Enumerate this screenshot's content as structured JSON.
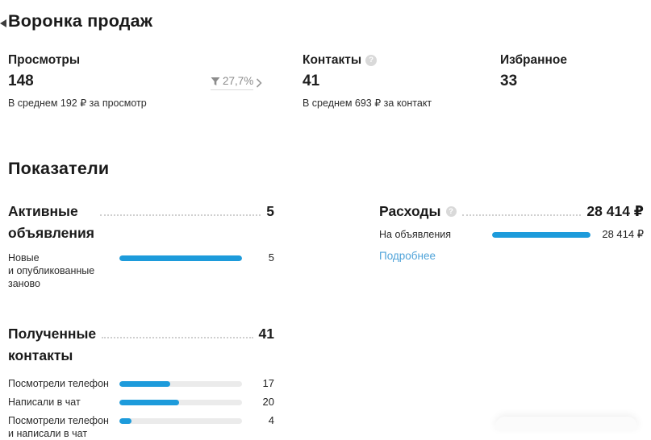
{
  "funnel": {
    "heading": "Воронка продаж",
    "conversion": {
      "value": "27,7%"
    },
    "stats": [
      {
        "title": "Просмотры",
        "value": "148",
        "caption": "В среднем 192 ₽ за просмотр"
      },
      {
        "title": "Контакты",
        "value": "41",
        "caption": "В среднем 693 ₽ за контакт"
      },
      {
        "title": "Избранное",
        "value": "33"
      }
    ]
  },
  "metrics": {
    "heading": "Показатели",
    "active_listings": {
      "title": "Активные объявления",
      "total": "5",
      "rows": [
        {
          "label": "Новые\nи опубликованные\nзаново",
          "value": "5",
          "percent": 100
        }
      ]
    },
    "expenses": {
      "title": "Расходы",
      "total": "28 414 ₽",
      "rows": [
        {
          "label": "На объявления",
          "value": "28 414 ₽",
          "percent": 100
        }
      ],
      "details_link": "Подробнее"
    },
    "received_contacts": {
      "title": "Полученные контакты",
      "total": "41",
      "rows": [
        {
          "label": "Посмотрели телефон",
          "value": "17",
          "percent": 41.5
        },
        {
          "label": "Написали в чат",
          "value": "20",
          "percent": 48.8
        },
        {
          "label": "Посмотрели телефон\nи написали в чат",
          "value": "4",
          "percent": 9.8
        }
      ]
    }
  },
  "icons": {
    "help_glyph": "?"
  },
  "colors": {
    "accent_blue": "#1d9bdb",
    "bar_track": "#ebebeb",
    "link_blue": "#4fa3d9",
    "muted_gray": "#8c8c8c",
    "text_dark": "#1f1f1f"
  }
}
